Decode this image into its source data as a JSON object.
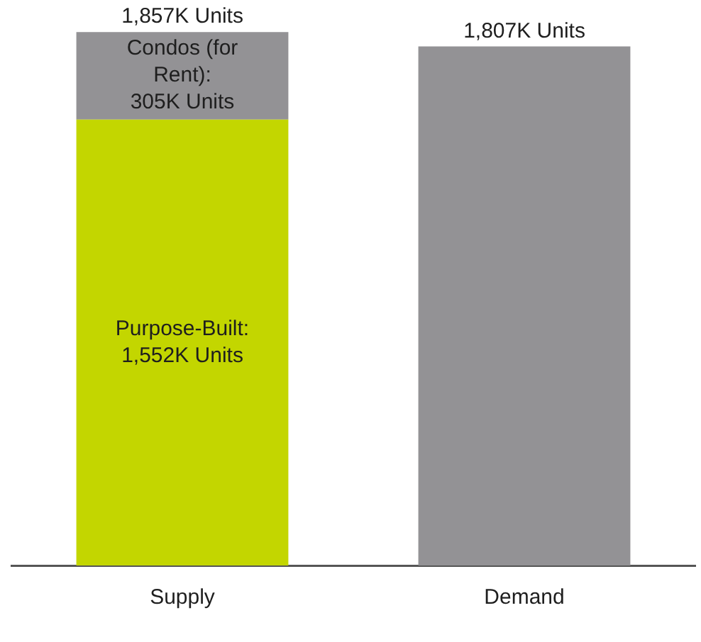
{
  "chart_data": {
    "type": "bar",
    "stacked": true,
    "categories": [
      "Supply",
      "Demand"
    ],
    "series": [
      {
        "name": "Purpose-Built:",
        "color": "#c3d600",
        "values": [
          1552,
          null
        ],
        "value_labels": [
          "1,552K Units",
          null
        ]
      },
      {
        "name": "Condos (for Rent):",
        "color": "#939295",
        "values": [
          305,
          null
        ],
        "value_labels": [
          "305K Units",
          null
        ]
      },
      {
        "color": "#939295",
        "values": [
          null,
          1807
        ]
      }
    ],
    "totals": [
      "1,857K Units",
      "1,807K Units"
    ]
  }
}
